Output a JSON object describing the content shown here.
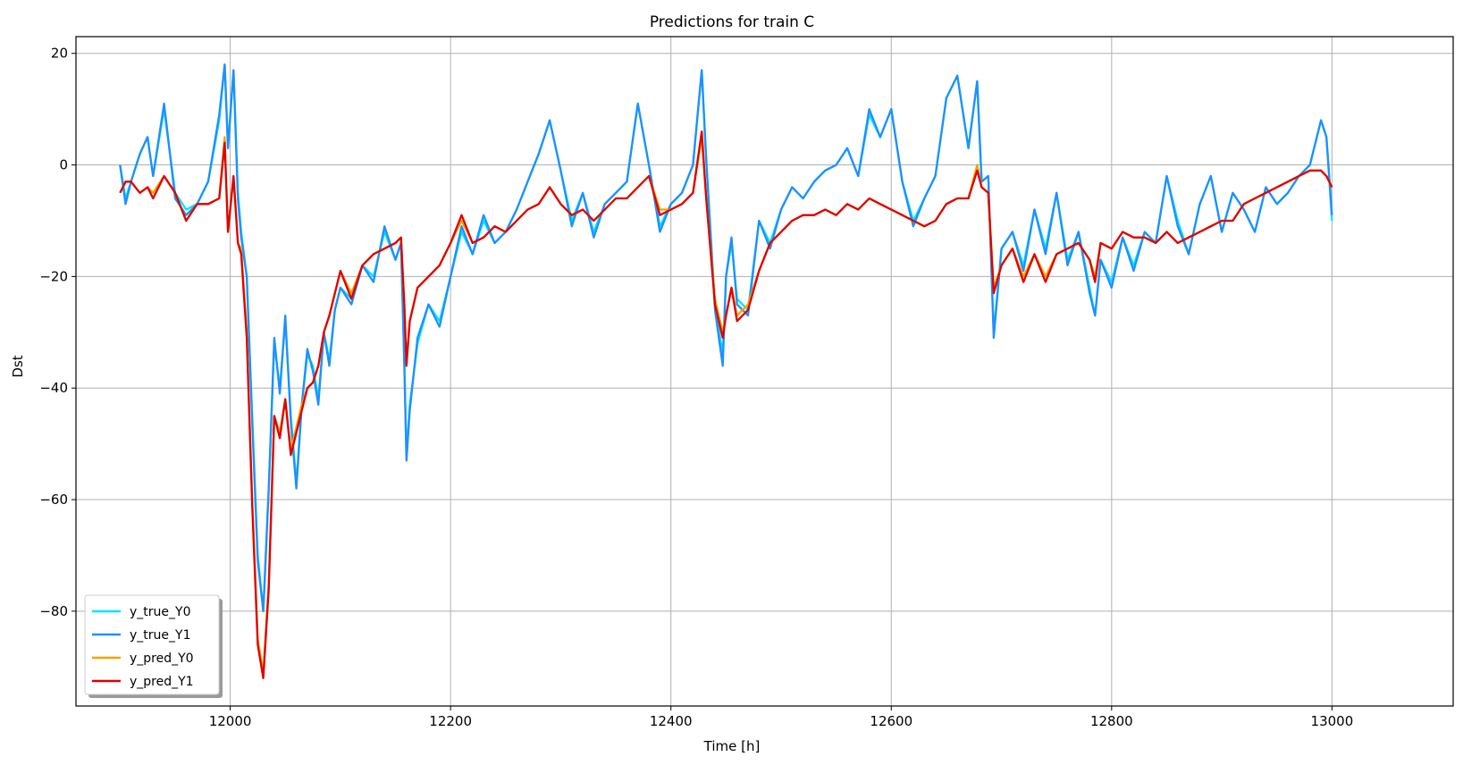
{
  "chart_data": {
    "type": "line",
    "title": "Predictions for train C",
    "xlabel": "Time [h]",
    "ylabel": "Dst",
    "xlim": [
      11860,
      13110
    ],
    "ylim": [
      -97,
      23
    ],
    "xticks": [
      12000,
      12200,
      12400,
      12600,
      12800,
      13000
    ],
    "yticks": [
      20,
      0,
      -20,
      -40,
      -60,
      -80
    ],
    "ytick_labels": [
      "20",
      "0",
      "−20",
      "−40",
      "−60",
      "−80"
    ],
    "grid": true,
    "legend": {
      "position": "lower-left",
      "entries": [
        "y_true_Y0",
        "y_true_Y1",
        "y_pred_Y0",
        "y_pred_Y1"
      ]
    },
    "series": [
      {
        "name": "y_true_Y0",
        "color": "#00e5ff",
        "x": [
          11900,
          11905,
          11910,
          11918,
          11925,
          11930,
          11940,
          11950,
          11960,
          11970,
          11980,
          11990,
          11995,
          11998,
          12003,
          12007,
          12010,
          12015,
          12020,
          12025,
          12030,
          12035,
          12040,
          12045,
          12050,
          12055,
          12060,
          12065,
          12070,
          12075,
          12080,
          12085,
          12090,
          12095,
          12100,
          12110,
          12120,
          12130,
          12140,
          12150,
          12155,
          12158,
          12160,
          12163,
          12170,
          12180,
          12190,
          12200,
          12210,
          12220,
          12230,
          12240,
          12250,
          12260,
          12270,
          12280,
          12290,
          12300,
          12310,
          12320,
          12330,
          12340,
          12350,
          12360,
          12370,
          12380,
          12390,
          12400,
          12410,
          12420,
          12428,
          12432,
          12440,
          12447,
          12450,
          12455,
          12460,
          12470,
          12480,
          12490,
          12500,
          12510,
          12520,
          12530,
          12540,
          12550,
          12560,
          12570,
          12580,
          12590,
          12600,
          12610,
          12620,
          12630,
          12640,
          12650,
          12660,
          12670,
          12678,
          12682,
          12688,
          12693,
          12700,
          12710,
          12720,
          12730,
          12740,
          12750,
          12760,
          12770,
          12780,
          12785,
          12790,
          12800,
          12810,
          12820,
          12830,
          12840,
          12850,
          12860,
          12870,
          12880,
          12890,
          12900,
          12910,
          12920,
          12930,
          12940,
          12950,
          12960,
          12970,
          12980,
          12990,
          12995,
          13000
        ],
        "y": [
          0,
          -6,
          -3,
          2,
          5,
          -2,
          10,
          -5,
          -8,
          -7,
          -3,
          8,
          18,
          3,
          17,
          -5,
          -12,
          -20,
          -45,
          -70,
          -80,
          -58,
          -32,
          -40,
          -28,
          -45,
          -57,
          -43,
          -34,
          -36,
          -42,
          -30,
          -35,
          -26,
          -22,
          -24,
          -18,
          -20,
          -12,
          -17,
          -14,
          -35,
          -52,
          -43,
          -32,
          -25,
          -28,
          -20,
          -12,
          -16,
          -10,
          -14,
          -12,
          -8,
          -3,
          2,
          8,
          -1,
          -10,
          -5,
          -12,
          -7,
          -5,
          -3,
          11,
          0,
          -11,
          -7,
          -5,
          0,
          17,
          1,
          -25,
          -34,
          -20,
          -14,
          -24,
          -26,
          -10,
          -14,
          -8,
          -4,
          -6,
          -3,
          -1,
          0,
          3,
          -2,
          9,
          5,
          10,
          -3,
          -10,
          -6,
          -2,
          12,
          16,
          3,
          15,
          -3,
          -2,
          -30,
          -15,
          -12,
          -18,
          -8,
          -15,
          -5,
          -17,
          -12,
          -22,
          -27,
          -17,
          -21,
          -13,
          -18,
          -12,
          -14,
          -2,
          -10,
          -16,
          -7,
          -2,
          -12,
          -5,
          -8,
          -12,
          -4,
          -7,
          -5,
          -2,
          0,
          8,
          5,
          -10
        ]
      },
      {
        "name": "y_true_Y1",
        "color": "#1e90ff",
        "x": [
          11900,
          11905,
          11910,
          11918,
          11925,
          11930,
          11940,
          11950,
          11960,
          11970,
          11980,
          11990,
          11995,
          11998,
          12003,
          12007,
          12010,
          12015,
          12020,
          12025,
          12030,
          12035,
          12040,
          12045,
          12050,
          12055,
          12060,
          12065,
          12070,
          12075,
          12080,
          12085,
          12090,
          12095,
          12100,
          12110,
          12120,
          12130,
          12140,
          12150,
          12155,
          12158,
          12160,
          12163,
          12170,
          12180,
          12190,
          12200,
          12210,
          12220,
          12230,
          12240,
          12250,
          12260,
          12270,
          12280,
          12290,
          12300,
          12310,
          12320,
          12330,
          12340,
          12350,
          12360,
          12370,
          12380,
          12390,
          12400,
          12410,
          12420,
          12428,
          12432,
          12440,
          12447,
          12450,
          12455,
          12460,
          12470,
          12480,
          12490,
          12500,
          12510,
          12520,
          12530,
          12540,
          12550,
          12560,
          12570,
          12580,
          12590,
          12600,
          12610,
          12620,
          12630,
          12640,
          12650,
          12660,
          12670,
          12678,
          12682,
          12688,
          12693,
          12700,
          12710,
          12720,
          12730,
          12740,
          12750,
          12760,
          12770,
          12780,
          12785,
          12790,
          12800,
          12810,
          12820,
          12830,
          12840,
          12850,
          12860,
          12870,
          12880,
          12890,
          12900,
          12910,
          12920,
          12930,
          12940,
          12950,
          12960,
          12970,
          12980,
          12990,
          12995,
          13000
        ],
        "y": [
          0,
          -7,
          -3,
          2,
          5,
          -2,
          11,
          -6,
          -9,
          -7,
          -3,
          9,
          18,
          3,
          17,
          -6,
          -13,
          -20,
          -46,
          -71,
          -80,
          -58,
          -31,
          -41,
          -27,
          -46,
          -58,
          -43,
          -33,
          -37,
          -43,
          -30,
          -36,
          -26,
          -22,
          -25,
          -18,
          -21,
          -11,
          -17,
          -14,
          -36,
          -53,
          -44,
          -31,
          -25,
          -29,
          -20,
          -11,
          -16,
          -9,
          -14,
          -12,
          -8,
          -3,
          2,
          8,
          -1,
          -11,
          -5,
          -13,
          -7,
          -5,
          -3,
          11,
          0,
          -12,
          -7,
          -5,
          0,
          17,
          1,
          -26,
          -36,
          -20,
          -13,
          -25,
          -27,
          -10,
          -15,
          -8,
          -4,
          -6,
          -3,
          -1,
          0,
          3,
          -2,
          10,
          5,
          10,
          -3,
          -11,
          -6,
          -2,
          12,
          16,
          3,
          15,
          -3,
          -2,
          -31,
          -15,
          -12,
          -19,
          -8,
          -16,
          -5,
          -18,
          -12,
          -23,
          -27,
          -17,
          -22,
          -13,
          -19,
          -12,
          -14,
          -2,
          -11,
          -16,
          -7,
          -2,
          -12,
          -5,
          -8,
          -12,
          -4,
          -7,
          -5,
          -2,
          0,
          8,
          5,
          -9
        ]
      },
      {
        "name": "y_pred_Y0",
        "color": "#f0a500",
        "x": [
          11900,
          11905,
          11910,
          11918,
          11925,
          11930,
          11940,
          11950,
          11960,
          11970,
          11980,
          11990,
          11995,
          11998,
          12003,
          12007,
          12010,
          12015,
          12020,
          12025,
          12030,
          12035,
          12040,
          12045,
          12050,
          12055,
          12060,
          12065,
          12070,
          12075,
          12080,
          12085,
          12090,
          12095,
          12100,
          12110,
          12120,
          12130,
          12140,
          12150,
          12155,
          12158,
          12160,
          12163,
          12170,
          12180,
          12190,
          12200,
          12210,
          12220,
          12230,
          12240,
          12250,
          12260,
          12270,
          12280,
          12290,
          12300,
          12310,
          12320,
          12330,
          12340,
          12350,
          12360,
          12370,
          12380,
          12390,
          12400,
          12410,
          12420,
          12428,
          12432,
          12440,
          12447,
          12450,
          12455,
          12460,
          12470,
          12480,
          12490,
          12500,
          12510,
          12520,
          12530,
          12540,
          12550,
          12560,
          12570,
          12580,
          12590,
          12600,
          12610,
          12620,
          12630,
          12640,
          12650,
          12660,
          12670,
          12678,
          12682,
          12688,
          12693,
          12700,
          12710,
          12720,
          12730,
          12740,
          12750,
          12760,
          12770,
          12780,
          12785,
          12790,
          12800,
          12810,
          12820,
          12830,
          12840,
          12850,
          12860,
          12870,
          12880,
          12890,
          12900,
          12910,
          12920,
          12930,
          12940,
          12950,
          12960,
          12970,
          12980,
          12990,
          12995,
          13000
        ],
        "y": [
          -5,
          -3,
          -3,
          -5,
          -4,
          -5,
          -2,
          -5,
          -10,
          -7,
          -7,
          -6,
          5,
          -12,
          -2,
          -14,
          -15,
          -30,
          -60,
          -85,
          -91,
          -75,
          -45,
          -48,
          -42,
          -51,
          -47,
          -43,
          -40,
          -39,
          -36,
          -30,
          -27,
          -23,
          -19,
          -23,
          -18,
          -16,
          -15,
          -14,
          -13,
          -25,
          -35,
          -28,
          -22,
          -20,
          -18,
          -14,
          -10,
          -14,
          -13,
          -11,
          -12,
          -10,
          -8,
          -7,
          -4,
          -7,
          -9,
          -8,
          -10,
          -8,
          -6,
          -6,
          -4,
          -2,
          -8,
          -8,
          -7,
          -5,
          5,
          -6,
          -24,
          -30,
          -27,
          -22,
          -27,
          -25,
          -19,
          -14,
          -12,
          -10,
          -9,
          -9,
          -8,
          -9,
          -7,
          -8,
          -6,
          -7,
          -8,
          -9,
          -10,
          -11,
          -10,
          -7,
          -6,
          -6,
          0,
          -4,
          -5,
          -22,
          -18,
          -15,
          -20,
          -16,
          -20,
          -16,
          -15,
          -14,
          -17,
          -20,
          -14,
          -15,
          -12,
          -13,
          -13,
          -14,
          -12,
          -14,
          -13,
          -12,
          -11,
          -10,
          -10,
          -7,
          -6,
          -5,
          -4,
          -3,
          -2,
          -1,
          -1,
          -2,
          -4
        ]
      },
      {
        "name": "y_pred_Y1",
        "color": "#e00000",
        "x": [
          11900,
          11905,
          11910,
          11918,
          11925,
          11930,
          11940,
          11950,
          11960,
          11970,
          11980,
          11990,
          11995,
          11998,
          12003,
          12007,
          12010,
          12015,
          12020,
          12025,
          12030,
          12035,
          12040,
          12045,
          12050,
          12055,
          12060,
          12065,
          12070,
          12075,
          12080,
          12085,
          12090,
          12095,
          12100,
          12110,
          12120,
          12130,
          12140,
          12150,
          12155,
          12158,
          12160,
          12163,
          12170,
          12180,
          12190,
          12200,
          12210,
          12220,
          12230,
          12240,
          12250,
          12260,
          12270,
          12280,
          12290,
          12300,
          12310,
          12320,
          12330,
          12340,
          12350,
          12360,
          12370,
          12380,
          12390,
          12400,
          12410,
          12420,
          12428,
          12432,
          12440,
          12447,
          12450,
          12455,
          12460,
          12470,
          12480,
          12490,
          12500,
          12510,
          12520,
          12530,
          12540,
          12550,
          12560,
          12570,
          12580,
          12590,
          12600,
          12610,
          12620,
          12630,
          12640,
          12650,
          12660,
          12670,
          12678,
          12682,
          12688,
          12693,
          12700,
          12710,
          12720,
          12730,
          12740,
          12750,
          12760,
          12770,
          12780,
          12785,
          12790,
          12800,
          12810,
          12820,
          12830,
          12840,
          12850,
          12860,
          12870,
          12880,
          12890,
          12900,
          12910,
          12920,
          12930,
          12940,
          12950,
          12960,
          12970,
          12980,
          12990,
          12995,
          13000
        ],
        "y": [
          -5,
          -3,
          -3,
          -5,
          -4,
          -6,
          -2,
          -5,
          -10,
          -7,
          -7,
          -6,
          4,
          -12,
          -2,
          -14,
          -16,
          -31,
          -61,
          -86,
          -92,
          -76,
          -45,
          -49,
          -42,
          -52,
          -48,
          -44,
          -40,
          -39,
          -36,
          -30,
          -27,
          -23,
          -19,
          -24,
          -18,
          -16,
          -15,
          -14,
          -13,
          -25,
          -36,
          -28,
          -22,
          -20,
          -18,
          -14,
          -9,
          -14,
          -13,
          -11,
          -12,
          -10,
          -8,
          -7,
          -4,
          -7,
          -9,
          -8,
          -10,
          -8,
          -6,
          -6,
          -4,
          -2,
          -9,
          -8,
          -7,
          -5,
          6,
          -6,
          -25,
          -31,
          -27,
          -22,
          -28,
          -26,
          -19,
          -14,
          -12,
          -10,
          -9,
          -9,
          -8,
          -9,
          -7,
          -8,
          -6,
          -7,
          -8,
          -9,
          -10,
          -11,
          -10,
          -7,
          -6,
          -6,
          -1,
          -4,
          -5,
          -23,
          -18,
          -15,
          -21,
          -16,
          -21,
          -16,
          -15,
          -14,
          -17,
          -21,
          -14,
          -15,
          -12,
          -13,
          -13,
          -14,
          -12,
          -14,
          -13,
          -12,
          -11,
          -10,
          -10,
          -7,
          -6,
          -5,
          -4,
          -3,
          -2,
          -1,
          -1,
          -2,
          -4
        ]
      }
    ]
  }
}
